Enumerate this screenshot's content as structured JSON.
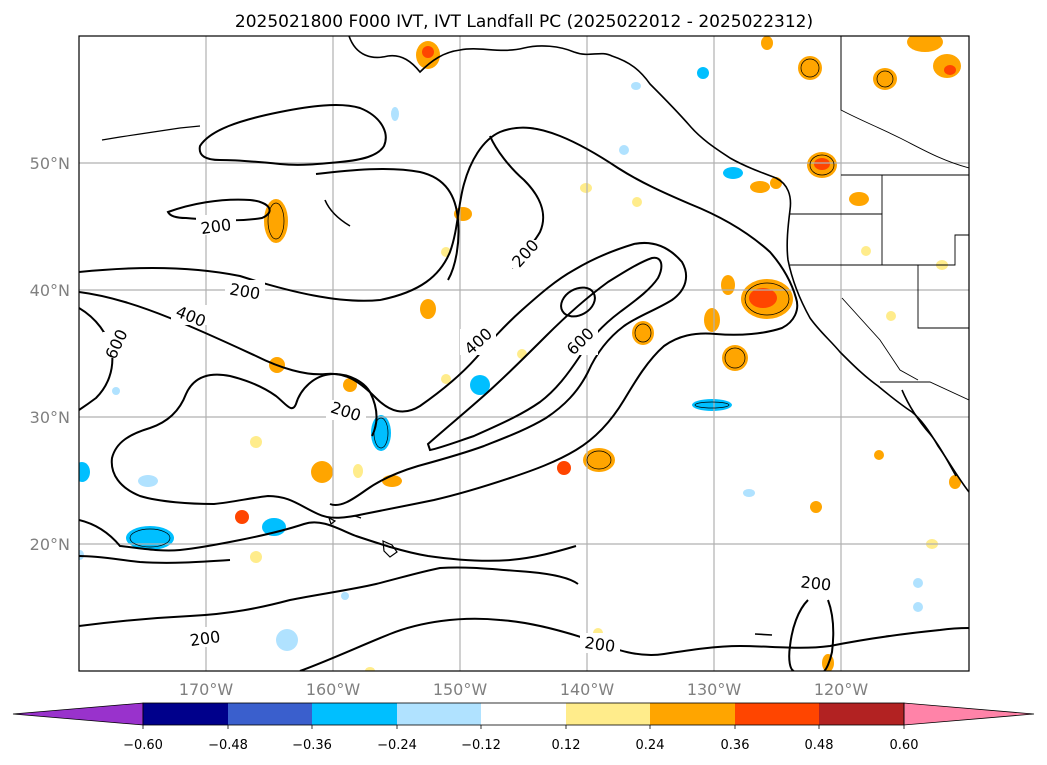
{
  "title": "2025021800 F000 IVT, IVT Landfall PC (2025022012 - 2025022312)",
  "map": {
    "lon_labels": [
      "170°W",
      "160°W",
      "150°W",
      "140°W",
      "130°W",
      "120°W"
    ],
    "lat_labels": [
      "50°N",
      "40°N",
      "30°N",
      "20°N"
    ],
    "contour_labels": [
      "200",
      "200",
      "400",
      "600",
      "200",
      "400",
      "600",
      "200",
      "200",
      "200"
    ],
    "grid_color": "#b0b0b0",
    "coast_color": "#000000"
  },
  "colorbar": {
    "ticks": [
      "−0.60",
      "−0.48",
      "−0.36",
      "−0.24",
      "−0.12",
      "0.12",
      "0.24",
      "0.36",
      "0.48",
      "0.60"
    ],
    "colors": [
      "#9932cc",
      "#00008b",
      "#3a5fcd",
      "#00bfff",
      "#b0e2ff",
      "#ffffff",
      "#ffec8b",
      "#ffa500",
      "#ff4500",
      "#b22222",
      "#ff83a8"
    ]
  }
}
